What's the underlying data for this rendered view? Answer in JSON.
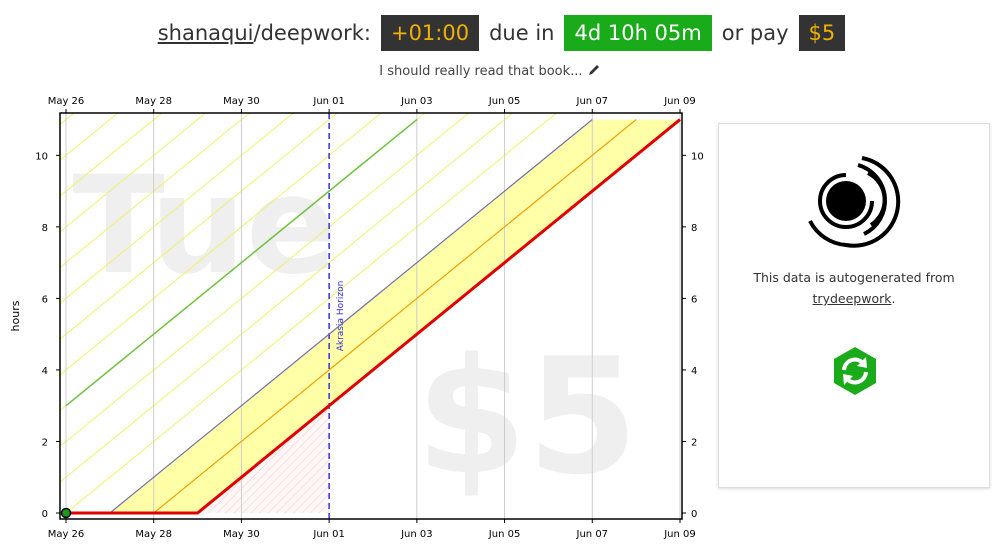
{
  "header": {
    "user": "shanaqui",
    "goal": "/deepwork:",
    "safety_buffer": "+01:00",
    "due_label": "due in",
    "due": "4d 10h 05m",
    "pay_label": "or pay",
    "pledge": "$5",
    "description": "I should really read that book..."
  },
  "chart_data": {
    "type": "line",
    "y_label": "hours",
    "watermark_day": "Tue",
    "watermark_pledge": "$5",
    "horizon_label": "Akrasia Horizon",
    "horizon_x": "Jun 01",
    "xlim": [
      "May 26",
      "Jun 09"
    ],
    "ylim": [
      0,
      11.1
    ],
    "xticks": [
      "May 26",
      "May 28",
      "May 30",
      "Jun 01",
      "Jun 03",
      "Jun 05",
      "Jun 07",
      "Jun 09"
    ],
    "yticks": [
      0,
      2,
      4,
      6,
      8,
      10
    ],
    "series": [
      {
        "color": "#e00000",
        "width": 3,
        "x": [
          "May 26",
          "May 29",
          "Jun 09"
        ],
        "values": [
          0,
          0,
          11
        ]
      },
      {
        "color": "#f0a000",
        "width": 1.2,
        "x": [
          "May 28",
          "Jun 08"
        ],
        "values": [
          0,
          11
        ]
      },
      {
        "color": "#7070b0",
        "width": 1.2,
        "x": [
          "May 27",
          "Jun 07"
        ],
        "values": [
          0,
          11
        ]
      },
      {
        "color": "#70c040",
        "width": 1.5,
        "x": [
          "May 26",
          "Jun 03"
        ],
        "values": [
          3,
          11
        ]
      }
    ],
    "points": {
      "color": "#1a9a1a",
      "x": [
        "May 26"
      ],
      "values": [
        0
      ]
    }
  },
  "panel": {
    "text": "This data is autogenerated from",
    "link": "trydeepwork",
    "after": "."
  }
}
